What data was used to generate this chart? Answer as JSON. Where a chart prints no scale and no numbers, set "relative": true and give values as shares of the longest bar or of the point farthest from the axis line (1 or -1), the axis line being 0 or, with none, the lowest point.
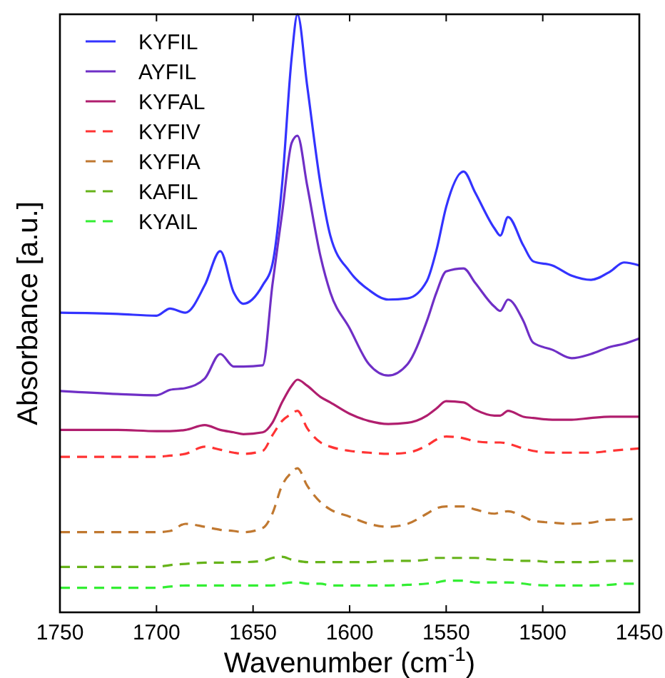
{
  "chart_data": {
    "type": "line",
    "relative": true,
    "xlabel": "Wavenumber (cm$^{-1}$)",
    "ylabel": "Absorbance [a.u.]",
    "x": [
      1750,
      1720,
      1700,
      1693,
      1685,
      1675,
      1667,
      1660,
      1655,
      1645,
      1640,
      1635,
      1630,
      1627,
      1622,
      1615,
      1610,
      1600,
      1590,
      1580,
      1570,
      1560,
      1555,
      1550,
      1541,
      1535,
      1525,
      1522,
      1518,
      1510,
      1505,
      1495,
      1485,
      1475,
      1465,
      1458,
      1450
    ],
    "xlim": [
      1750,
      1450
    ],
    "xticks": [
      1750,
      1700,
      1650,
      1600,
      1550,
      1500,
      1450
    ],
    "tick_labels": "x",
    "legend": "top left",
    "grid": false,
    "series": [
      {
        "name": "KYFIL",
        "color": "#3333ff",
        "line_style": "solid",
        "values": [
          0.501,
          0.499,
          0.496,
          0.508,
          0.501,
          0.547,
          0.604,
          0.535,
          0.516,
          0.547,
          0.582,
          0.714,
          0.928,
          1,
          0.881,
          0.714,
          0.63,
          0.57,
          0.539,
          0.523,
          0.525,
          0.554,
          0.606,
          0.678,
          0.737,
          0.702,
          0.642,
          0.63,
          0.661,
          0.613,
          0.587,
          0.58,
          0.563,
          0.556,
          0.57,
          0.585,
          0.58
        ]
      },
      {
        "name": "AYFIL",
        "color": "#6f2fc6",
        "line_style": "solid",
        "values": [
          0.37,
          0.365,
          0.363,
          0.372,
          0.375,
          0.391,
          0.432,
          0.411,
          0.411,
          0.413,
          0.547,
          0.666,
          0.785,
          0.797,
          0.714,
          0.594,
          0.535,
          0.475,
          0.415,
          0.396,
          0.415,
          0.487,
          0.535,
          0.57,
          0.575,
          0.551,
          0.511,
          0.504,
          0.523,
          0.487,
          0.451,
          0.439,
          0.425,
          0.432,
          0.444,
          0.449,
          0.458
        ]
      },
      {
        "name": "KYFAL",
        "color": "#b01e6e",
        "line_style": "solid",
        "values": [
          0.305,
          0.305,
          0.303,
          0.303,
          0.305,
          0.313,
          0.305,
          0.301,
          0.298,
          0.301,
          0.317,
          0.351,
          0.379,
          0.389,
          0.379,
          0.36,
          0.351,
          0.332,
          0.32,
          0.315,
          0.317,
          0.329,
          0.341,
          0.353,
          0.351,
          0.339,
          0.329,
          0.329,
          0.337,
          0.327,
          0.325,
          0.322,
          0.322,
          0.325,
          0.327,
          0.327,
          0.327
        ]
      },
      {
        "name": "KYFIV",
        "color": "#ff3333",
        "line_style": "dashed",
        "values": [
          0.26,
          0.26,
          0.26,
          0.262,
          0.265,
          0.277,
          0.272,
          0.267,
          0.265,
          0.27,
          0.296,
          0.32,
          0.332,
          0.337,
          0.308,
          0.284,
          0.277,
          0.27,
          0.267,
          0.265,
          0.267,
          0.279,
          0.289,
          0.294,
          0.291,
          0.286,
          0.284,
          0.284,
          0.282,
          0.274,
          0.27,
          0.267,
          0.267,
          0.267,
          0.27,
          0.272,
          0.274
        ]
      },
      {
        "name": "KYFIA",
        "color": "#c07830",
        "line_style": "dashed",
        "values": [
          0.134,
          0.134,
          0.134,
          0.136,
          0.148,
          0.143,
          0.138,
          0.136,
          0.134,
          0.141,
          0.165,
          0.212,
          0.234,
          0.241,
          0.212,
          0.184,
          0.172,
          0.16,
          0.148,
          0.143,
          0.148,
          0.165,
          0.174,
          0.177,
          0.177,
          0.172,
          0.165,
          0.167,
          0.169,
          0.16,
          0.153,
          0.15,
          0.148,
          0.15,
          0.155,
          0.155,
          0.158
        ]
      },
      {
        "name": "KAFIL",
        "color": "#66b31a",
        "line_style": "dashed",
        "values": [
          0.076,
          0.076,
          0.076,
          0.079,
          0.081,
          0.083,
          0.083,
          0.084,
          0.084,
          0.086,
          0.091,
          0.093,
          0.088,
          0.086,
          0.084,
          0.084,
          0.084,
          0.084,
          0.084,
          0.086,
          0.086,
          0.088,
          0.091,
          0.091,
          0.091,
          0.091,
          0.088,
          0.088,
          0.088,
          0.086,
          0.086,
          0.084,
          0.084,
          0.084,
          0.086,
          0.086,
          0.086
        ]
      },
      {
        "name": "KYAIL",
        "color": "#33ee33",
        "line_style": "dashed",
        "values": [
          0.041,
          0.041,
          0.041,
          0.043,
          0.045,
          0.045,
          0.045,
          0.045,
          0.045,
          0.045,
          0.045,
          0.048,
          0.05,
          0.05,
          0.048,
          0.048,
          0.045,
          0.045,
          0.045,
          0.045,
          0.046,
          0.048,
          0.05,
          0.053,
          0.053,
          0.05,
          0.05,
          0.05,
          0.05,
          0.048,
          0.046,
          0.045,
          0.045,
          0.045,
          0.046,
          0.048,
          0.048
        ]
      }
    ]
  }
}
